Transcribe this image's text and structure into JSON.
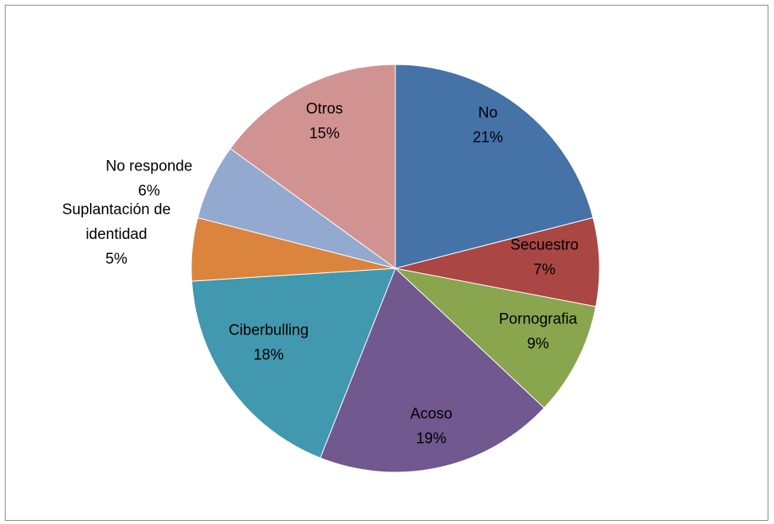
{
  "chart_data": {
    "type": "pie",
    "start_angle_deg": 0,
    "direction": "clockwise",
    "slices": [
      {
        "label_lines": [
          "No"
        ],
        "value_label": "21%",
        "value": 21,
        "color": "#4572a7"
      },
      {
        "label_lines": [
          "Secuestro"
        ],
        "value_label": "7%",
        "value": 7,
        "color": "#aa4643"
      },
      {
        "label_lines": [
          "Pornografia"
        ],
        "value_label": "9%",
        "value": 9,
        "color": "#89a54e"
      },
      {
        "label_lines": [
          "Acoso"
        ],
        "value_label": "19%",
        "value": 19,
        "color": "#71588f"
      },
      {
        "label_lines": [
          "Ciberbulling"
        ],
        "value_label": "18%",
        "value": 18,
        "color": "#4198af"
      },
      {
        "label_lines": [
          "Suplantación de",
          "identidad"
        ],
        "value_label": "5%",
        "value": 5,
        "color": "#db843d"
      },
      {
        "label_lines": [
          "No responde"
        ],
        "value_label": "6%",
        "value": 6,
        "color": "#93a9cf"
      },
      {
        "label_lines": [
          "Otros"
        ],
        "value_label": "15%",
        "value": 15,
        "color": "#d19392"
      }
    ]
  }
}
